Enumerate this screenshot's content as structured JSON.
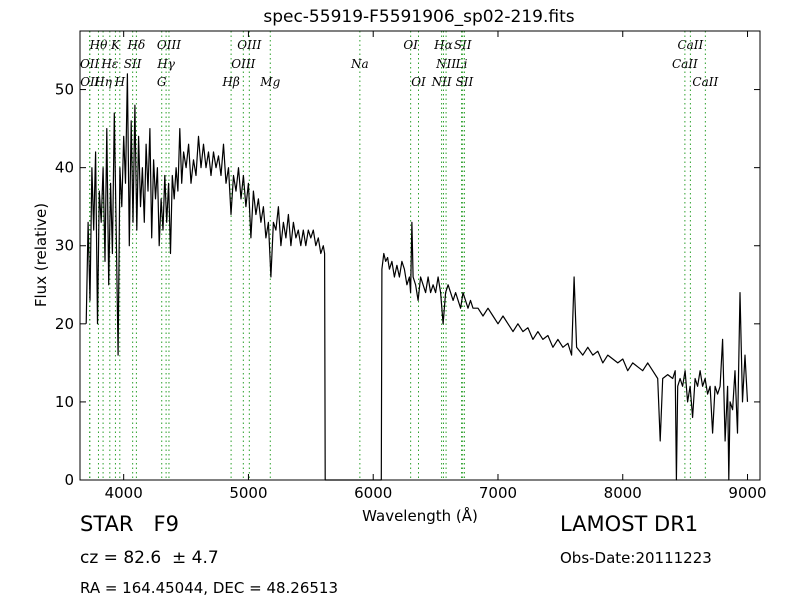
{
  "chart_data": {
    "type": "line",
    "title": "spec-55919-F5591906_sp02-219.fits",
    "xlabel": "Wavelength (Å)",
    "ylabel": "Flux (relative)",
    "xlim": [
      3650,
      9100
    ],
    "ylim": [
      0,
      57.5
    ],
    "xticks": [
      4000,
      5000,
      6000,
      7000,
      8000,
      9000
    ],
    "yticks": [
      0,
      10,
      20,
      30,
      40,
      50
    ],
    "grid": false,
    "line_color": "#000000",
    "marker_color": "#2ca02c",
    "series": [
      {
        "values": [
          [
            3700,
            20
          ],
          [
            3715,
            33
          ],
          [
            3730,
            23
          ],
          [
            3745,
            40
          ],
          [
            3760,
            32
          ],
          [
            3775,
            42
          ],
          [
            3790,
            20
          ],
          [
            3805,
            37
          ],
          [
            3820,
            33
          ],
          [
            3835,
            40
          ],
          [
            3850,
            28
          ],
          [
            3865,
            45
          ],
          [
            3880,
            25
          ],
          [
            3895,
            38
          ],
          [
            3910,
            29
          ],
          [
            3925,
            47
          ],
          [
            3940,
            32
          ],
          [
            3955,
            16
          ],
          [
            3970,
            40
          ],
          [
            3985,
            35
          ],
          [
            4000,
            44
          ],
          [
            4015,
            38
          ],
          [
            4030,
            52
          ],
          [
            4045,
            30
          ],
          [
            4060,
            46
          ],
          [
            4075,
            33
          ],
          [
            4090,
            48
          ],
          [
            4105,
            32
          ],
          [
            4120,
            44
          ],
          [
            4135,
            35
          ],
          [
            4150,
            40
          ],
          [
            4165,
            33
          ],
          [
            4180,
            43
          ],
          [
            4195,
            37
          ],
          [
            4210,
            45
          ],
          [
            4225,
            31
          ],
          [
            4240,
            41
          ],
          [
            4255,
            36
          ],
          [
            4270,
            40
          ],
          [
            4285,
            30
          ],
          [
            4300,
            36
          ],
          [
            4315,
            32
          ],
          [
            4330,
            39
          ],
          [
            4345,
            33
          ],
          [
            4360,
            38
          ],
          [
            4375,
            29
          ],
          [
            4390,
            39
          ],
          [
            4405,
            36
          ],
          [
            4420,
            40
          ],
          [
            4435,
            37
          ],
          [
            4450,
            45
          ],
          [
            4465,
            38
          ],
          [
            4480,
            42
          ],
          [
            4500,
            40
          ],
          [
            4520,
            43
          ],
          [
            4540,
            38
          ],
          [
            4560,
            41
          ],
          [
            4580,
            39
          ],
          [
            4600,
            44
          ],
          [
            4620,
            40
          ],
          [
            4640,
            43
          ],
          [
            4660,
            40
          ],
          [
            4680,
            42
          ],
          [
            4700,
            39
          ],
          [
            4720,
            42
          ],
          [
            4740,
            40
          ],
          [
            4760,
            41.5
          ],
          [
            4780,
            39
          ],
          [
            4800,
            43
          ],
          [
            4820,
            38
          ],
          [
            4840,
            40
          ],
          [
            4860,
            34
          ],
          [
            4880,
            39
          ],
          [
            4900,
            37
          ],
          [
            4920,
            40
          ],
          [
            4940,
            36
          ],
          [
            4960,
            39
          ],
          [
            4980,
            35
          ],
          [
            5000,
            38
          ],
          [
            5020,
            31
          ],
          [
            5040,
            37
          ],
          [
            5060,
            34
          ],
          [
            5080,
            36
          ],
          [
            5100,
            33
          ],
          [
            5120,
            35
          ],
          [
            5140,
            31
          ],
          [
            5160,
            33
          ],
          [
            5180,
            26
          ],
          [
            5200,
            33
          ],
          [
            5220,
            32
          ],
          [
            5240,
            35
          ],
          [
            5260,
            30
          ],
          [
            5280,
            33
          ],
          [
            5300,
            31
          ],
          [
            5320,
            34
          ],
          [
            5340,
            30
          ],
          [
            5360,
            33
          ],
          [
            5380,
            31
          ],
          [
            5400,
            32
          ],
          [
            5420,
            30
          ],
          [
            5440,
            32
          ],
          [
            5460,
            30
          ],
          [
            5480,
            32
          ],
          [
            5500,
            31
          ],
          [
            5520,
            32
          ],
          [
            5540,
            30
          ],
          [
            5560,
            31
          ],
          [
            5580,
            29
          ],
          [
            5600,
            30
          ],
          [
            5610,
            29
          ],
          [
            5615,
            0
          ],
          [
            6065,
            0
          ],
          [
            6070,
            27
          ],
          [
            6085,
            29
          ],
          [
            6100,
            28
          ],
          [
            6115,
            28.5
          ],
          [
            6130,
            27
          ],
          [
            6150,
            28
          ],
          [
            6170,
            26
          ],
          [
            6190,
            27.5
          ],
          [
            6210,
            26
          ],
          [
            6230,
            28
          ],
          [
            6250,
            27
          ],
          [
            6270,
            25
          ],
          [
            6290,
            26
          ],
          [
            6300,
            24
          ],
          [
            6310,
            33
          ],
          [
            6320,
            26
          ],
          [
            6340,
            25
          ],
          [
            6360,
            23
          ],
          [
            6380,
            26
          ],
          [
            6400,
            25
          ],
          [
            6420,
            24
          ],
          [
            6440,
            26
          ],
          [
            6460,
            24
          ],
          [
            6480,
            25
          ],
          [
            6500,
            24
          ],
          [
            6520,
            26
          ],
          [
            6540,
            24
          ],
          [
            6560,
            20
          ],
          [
            6580,
            24
          ],
          [
            6600,
            25
          ],
          [
            6620,
            24
          ],
          [
            6640,
            23
          ],
          [
            6660,
            24
          ],
          [
            6680,
            23
          ],
          [
            6700,
            22
          ],
          [
            6720,
            24
          ],
          [
            6740,
            23
          ],
          [
            6760,
            22
          ],
          [
            6780,
            23
          ],
          [
            6800,
            22
          ],
          [
            6840,
            22
          ],
          [
            6880,
            21
          ],
          [
            6920,
            22
          ],
          [
            6960,
            21
          ],
          [
            7000,
            20
          ],
          [
            7040,
            21
          ],
          [
            7080,
            20
          ],
          [
            7120,
            19
          ],
          [
            7160,
            20
          ],
          [
            7200,
            19
          ],
          [
            7240,
            19.5
          ],
          [
            7280,
            18
          ],
          [
            7320,
            19
          ],
          [
            7360,
            18
          ],
          [
            7400,
            18.5
          ],
          [
            7440,
            17
          ],
          [
            7480,
            18
          ],
          [
            7520,
            17
          ],
          [
            7560,
            17.5
          ],
          [
            7590,
            16
          ],
          [
            7610,
            26
          ],
          [
            7630,
            17
          ],
          [
            7680,
            16
          ],
          [
            7720,
            17
          ],
          [
            7760,
            16
          ],
          [
            7800,
            16.5
          ],
          [
            7840,
            15
          ],
          [
            7880,
            16
          ],
          [
            7920,
            15.5
          ],
          [
            7960,
            15
          ],
          [
            8000,
            15.5
          ],
          [
            8040,
            14
          ],
          [
            8080,
            15
          ],
          [
            8120,
            14.5
          ],
          [
            8160,
            14
          ],
          [
            8200,
            15
          ],
          [
            8240,
            14
          ],
          [
            8280,
            13
          ],
          [
            8300,
            5
          ],
          [
            8320,
            13
          ],
          [
            8360,
            13.5
          ],
          [
            8400,
            13
          ],
          [
            8420,
            14
          ],
          [
            8430,
            0
          ],
          [
            8440,
            12
          ],
          [
            8460,
            13
          ],
          [
            8480,
            12
          ],
          [
            8500,
            14
          ],
          [
            8520,
            10
          ],
          [
            8540,
            12
          ],
          [
            8560,
            8
          ],
          [
            8580,
            13
          ],
          [
            8600,
            12
          ],
          [
            8620,
            14
          ],
          [
            8640,
            12
          ],
          [
            8660,
            13
          ],
          [
            8680,
            11
          ],
          [
            8700,
            12
          ],
          [
            8720,
            6
          ],
          [
            8740,
            12
          ],
          [
            8760,
            11
          ],
          [
            8780,
            12
          ],
          [
            8800,
            18
          ],
          [
            8820,
            5
          ],
          [
            8840,
            12
          ],
          [
            8850,
            0
          ],
          [
            8860,
            10
          ],
          [
            8880,
            9
          ],
          [
            8900,
            14
          ],
          [
            8920,
            6
          ],
          [
            8940,
            24
          ],
          [
            8960,
            10
          ],
          [
            8980,
            16
          ],
          [
            9000,
            10
          ]
        ]
      }
    ],
    "line_markers": [
      {
        "label": "OII",
        "x": 3727,
        "row": 2
      },
      {
        "label": "OII",
        "x": 3729,
        "row": 3
      },
      {
        "label": "Hθ",
        "x": 3798,
        "row": 1
      },
      {
        "label": "Hη",
        "x": 3835,
        "row": 3
      },
      {
        "label": "Hε",
        "x": 3889,
        "row": 2
      },
      {
        "label": "K",
        "x": 3934,
        "row": 1
      },
      {
        "label": "H",
        "x": 3969,
        "row": 3
      },
      {
        "label": "SII",
        "x": 4072,
        "row": 2
      },
      {
        "label": "Hδ",
        "x": 4102,
        "row": 1
      },
      {
        "label": "OIII",
        "x": 4363,
        "row": 1
      },
      {
        "label": "Hγ",
        "x": 4340,
        "row": 2
      },
      {
        "label": "G",
        "x": 4305,
        "row": 3
      },
      {
        "label": "OIII",
        "x": 5007,
        "row": 1
      },
      {
        "label": "OIII",
        "x": 4959,
        "row": 2
      },
      {
        "label": "Hβ",
        "x": 4861,
        "row": 3
      },
      {
        "label": "Mg",
        "x": 5175,
        "row": 3
      },
      {
        "label": "Na",
        "x": 5893,
        "row": 2
      },
      {
        "label": "OI",
        "x": 6300,
        "row": 1
      },
      {
        "label": "OI",
        "x": 6363,
        "row": 3
      },
      {
        "label": "Hα",
        "x": 6563,
        "row": 1
      },
      {
        "label": "NII",
        "x": 6584,
        "row": 2
      },
      {
        "label": "NII",
        "x": 6548,
        "row": 3
      },
      {
        "label": "SII",
        "x": 6717,
        "row": 1
      },
      {
        "label": "Li",
        "x": 6708,
        "row": 2
      },
      {
        "label": "SII",
        "x": 6731,
        "row": 3
      },
      {
        "label": "CaII",
        "x": 8542,
        "row": 1
      },
      {
        "label": "CaII",
        "x": 8498,
        "row": 2
      },
      {
        "label": "CaII",
        "x": 8662,
        "row": 3
      }
    ]
  },
  "info": {
    "object_class": "STAR   F9",
    "cz_line": "cz = 82.6  ± 4.7",
    "ra_dec": "RA = 164.45044, DEC = 48.26513",
    "survey": "LAMOST DR1",
    "obs_date": "Obs-Date:20111223"
  }
}
